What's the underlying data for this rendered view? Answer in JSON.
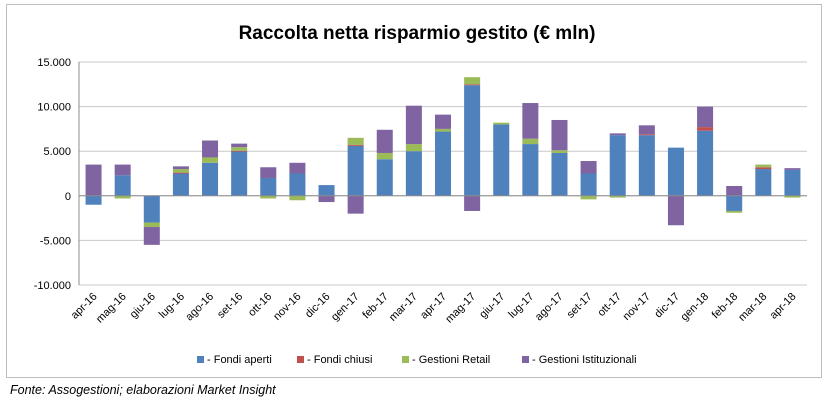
{
  "chart_data": {
    "type": "bar",
    "stacked": true,
    "title": "Raccolta netta risparmio gestito (€ mln)",
    "xlabel": "",
    "ylabel": "",
    "ylim": [
      -10000,
      15000
    ],
    "yticks": [
      -10000,
      -5000,
      0,
      5000,
      10000,
      15000
    ],
    "ytick_labels": [
      "-10.000",
      "-5.000",
      "0",
      "5.000",
      "10.000",
      "15.000"
    ],
    "grid": true,
    "legend_position": "bottom",
    "categories": [
      "apr-16",
      "mag-16",
      "giu-16",
      "lug-16",
      "ago-16",
      "set-16",
      "ott-16",
      "nov-16",
      "dic-16",
      "gen-17",
      "feb-17",
      "mar-17",
      "apr-17",
      "mag-17",
      "giu-17",
      "lug-17",
      "ago-17",
      "set-17",
      "ott-17",
      "nov-17",
      "dic-17",
      "gen-18",
      "feb-18",
      "mar-18",
      "apr-18"
    ],
    "series": [
      {
        "name": "Fondi aperti",
        "color": "#4f81bd",
        "values": [
          -1000,
          2300,
          -3000,
          2500,
          3700,
          5000,
          2000,
          2500,
          1200,
          5600,
          4100,
          5000,
          7200,
          12400,
          8000,
          5800,
          4800,
          2500,
          6800,
          6800,
          5400,
          7300,
          -1700,
          3000,
          2900
        ]
      },
      {
        "name": "Fondi chiusi",
        "color": "#c0504d",
        "values": [
          0,
          0,
          0,
          100,
          0,
          50,
          0,
          0,
          0,
          100,
          0,
          0,
          0,
          100,
          0,
          0,
          0,
          0,
          0,
          100,
          0,
          400,
          0,
          200,
          0
        ]
      },
      {
        "name": "Gestioni Retail",
        "color": "#9bbb59",
        "values": [
          0,
          -300,
          -500,
          400,
          600,
          400,
          -300,
          -500,
          0,
          800,
          700,
          800,
          300,
          800,
          200,
          600,
          300,
          -400,
          -200,
          0,
          0,
          0,
          -200,
          300,
          -200
        ]
      },
      {
        "name": "Gestioni Istituzionali",
        "color": "#8064a2",
        "values": [
          3500,
          1200,
          -2000,
          300,
          1900,
          400,
          1200,
          1200,
          -700,
          -2000,
          2600,
          4300,
          1600,
          -1700,
          0,
          4000,
          3400,
          1400,
          200,
          1000,
          -3300,
          2300,
          1100,
          0,
          200
        ]
      }
    ]
  },
  "source_note": "Fonte: Assogestioni; elaborazioni Market Insight"
}
